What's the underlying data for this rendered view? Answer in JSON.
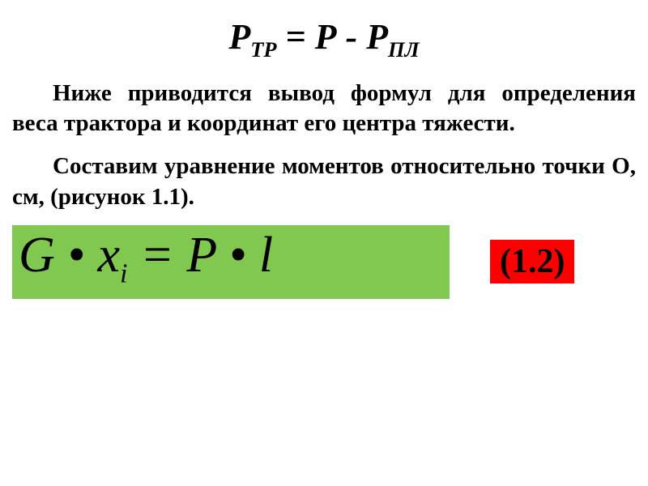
{
  "formula_top": {
    "p": "Р",
    "tr": "ТР",
    "equals": " = ",
    "p2": "Р",
    "minus": " - ",
    "p3": "Р",
    "pl": "ПЛ"
  },
  "para1": "Ниже приводится вывод формул для определения веса трактора и координат его центра тяжести.",
  "para2": "Составим уравнение моментов относительно точки О, см,  (рисунок 1.1).",
  "equation": {
    "g": "G",
    "dot1": " • ",
    "x": "x",
    "i": "i",
    "eq": " = ",
    "p": "P",
    "dot2": " • ",
    "l": "l"
  },
  "eq_number": "(1.2)",
  "colors": {
    "green": "#80c850",
    "red": "#ff0000",
    "text": "#000000",
    "bg": "#ffffff"
  },
  "fonts": {
    "formula_top_size": 44,
    "para_size": 29,
    "equation_size": 62,
    "eqnum_size": 42
  }
}
